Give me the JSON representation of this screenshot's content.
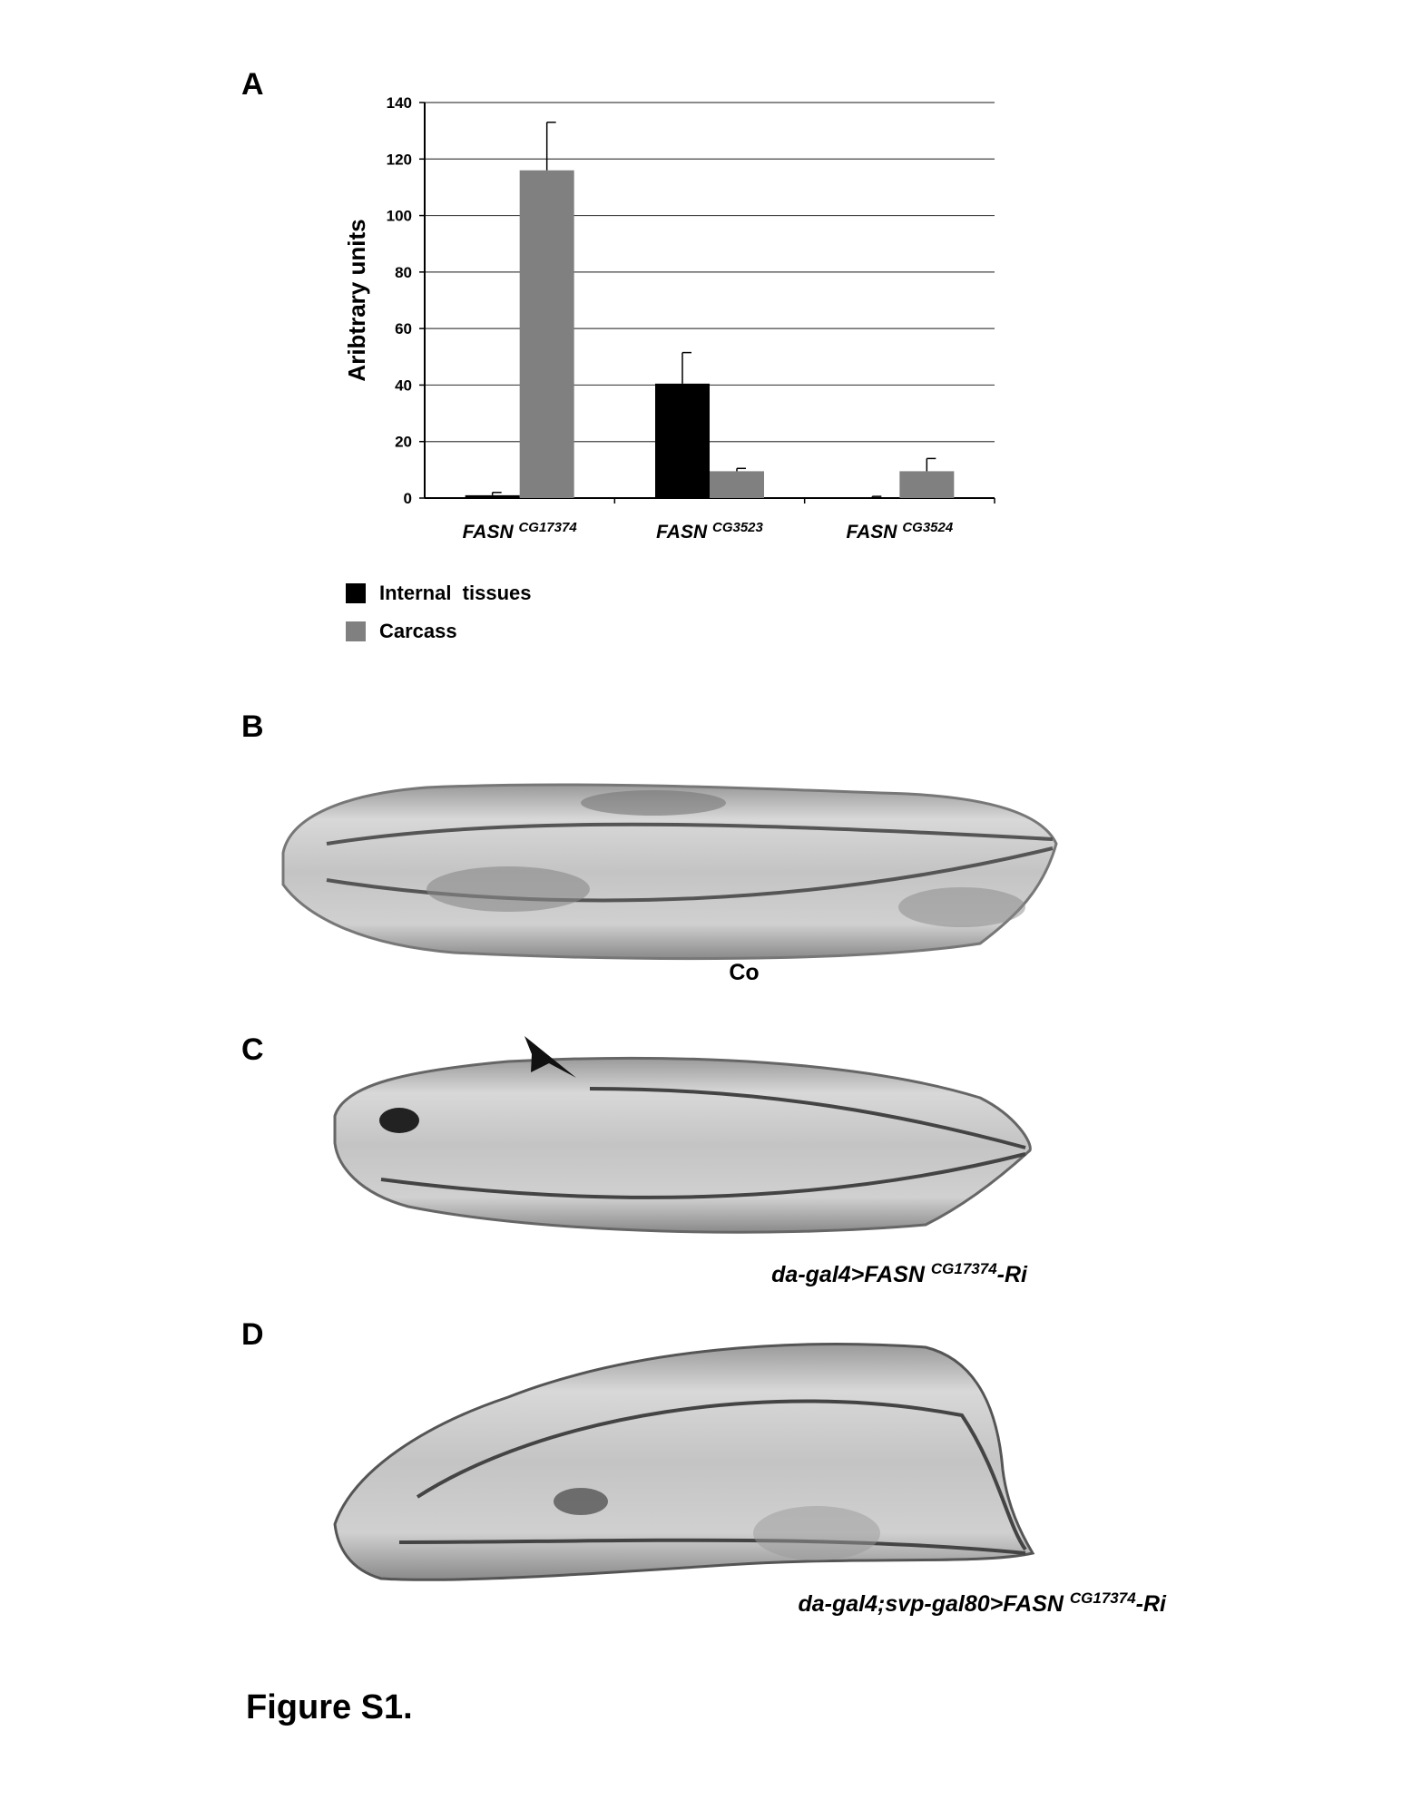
{
  "chart_data": {
    "type": "bar",
    "panel_label": "A",
    "ylabel": "Aribtrary units",
    "categories": [
      "FASN CG17374",
      "FASN CG3523",
      "FASN CG3524"
    ],
    "series": [
      {
        "name": "Internal  tissues",
        "color": "#000000",
        "values": [
          1,
          40.5,
          0.3
        ],
        "errors": [
          1,
          11,
          0.3
        ]
      },
      {
        "name": "Carcass",
        "color": "#808080",
        "values": [
          116,
          9.5,
          9.5
        ],
        "errors": [
          17,
          1,
          4.5
        ]
      }
    ],
    "ylim": [
      0,
      140
    ],
    "yticks": [
      0,
      20,
      40,
      60,
      80,
      100,
      120,
      140
    ],
    "grid": true
  },
  "panels": [
    {
      "label": "B",
      "caption": {
        "prefix": "Co"
      }
    },
    {
      "label": "C",
      "caption": {
        "prefix": "da-gal4>FASN ",
        "sup": "CG17374",
        "suffix": "-Ri"
      }
    },
    {
      "label": "D",
      "caption": {
        "prefix": "da-gal4;svp-gal80>FASN ",
        "sup": "CG17374",
        "suffix": "-Ri"
      }
    }
  ],
  "figure_label": "Figure S1."
}
